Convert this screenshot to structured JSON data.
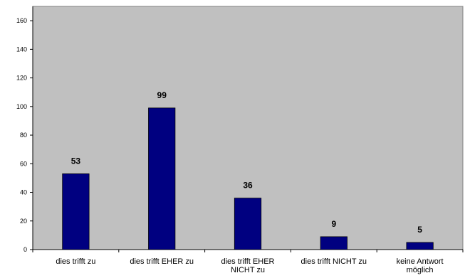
{
  "chart_data": {
    "type": "bar",
    "categories": [
      [
        "dies trifft zu"
      ],
      [
        "dies trifft EHER zu"
      ],
      [
        "dies trifft EHER",
        "NICHT zu"
      ],
      [
        "dies trifft NICHT zu"
      ],
      [
        "keine Antwort",
        "möglich"
      ]
    ],
    "values": [
      53,
      99,
      36,
      9,
      5
    ],
    "data_labels": [
      "53",
      "99",
      "36",
      "9",
      "5"
    ],
    "title": "",
    "xlabel": "",
    "ylabel": "",
    "ylim": [
      0,
      170
    ],
    "y_ticks": [
      0,
      20,
      40,
      60,
      80,
      100,
      120,
      140,
      160
    ],
    "y_tick_labels": [
      "0",
      "20",
      "40",
      "60",
      "80",
      "100",
      "120",
      "140",
      "160"
    ],
    "grid": false,
    "legend": "none",
    "colors": {
      "bar": "#000080",
      "bar_outline": "#000000",
      "plot_background": "#c0c0c0",
      "plot_border": "#808080",
      "axis": "#000000"
    }
  }
}
